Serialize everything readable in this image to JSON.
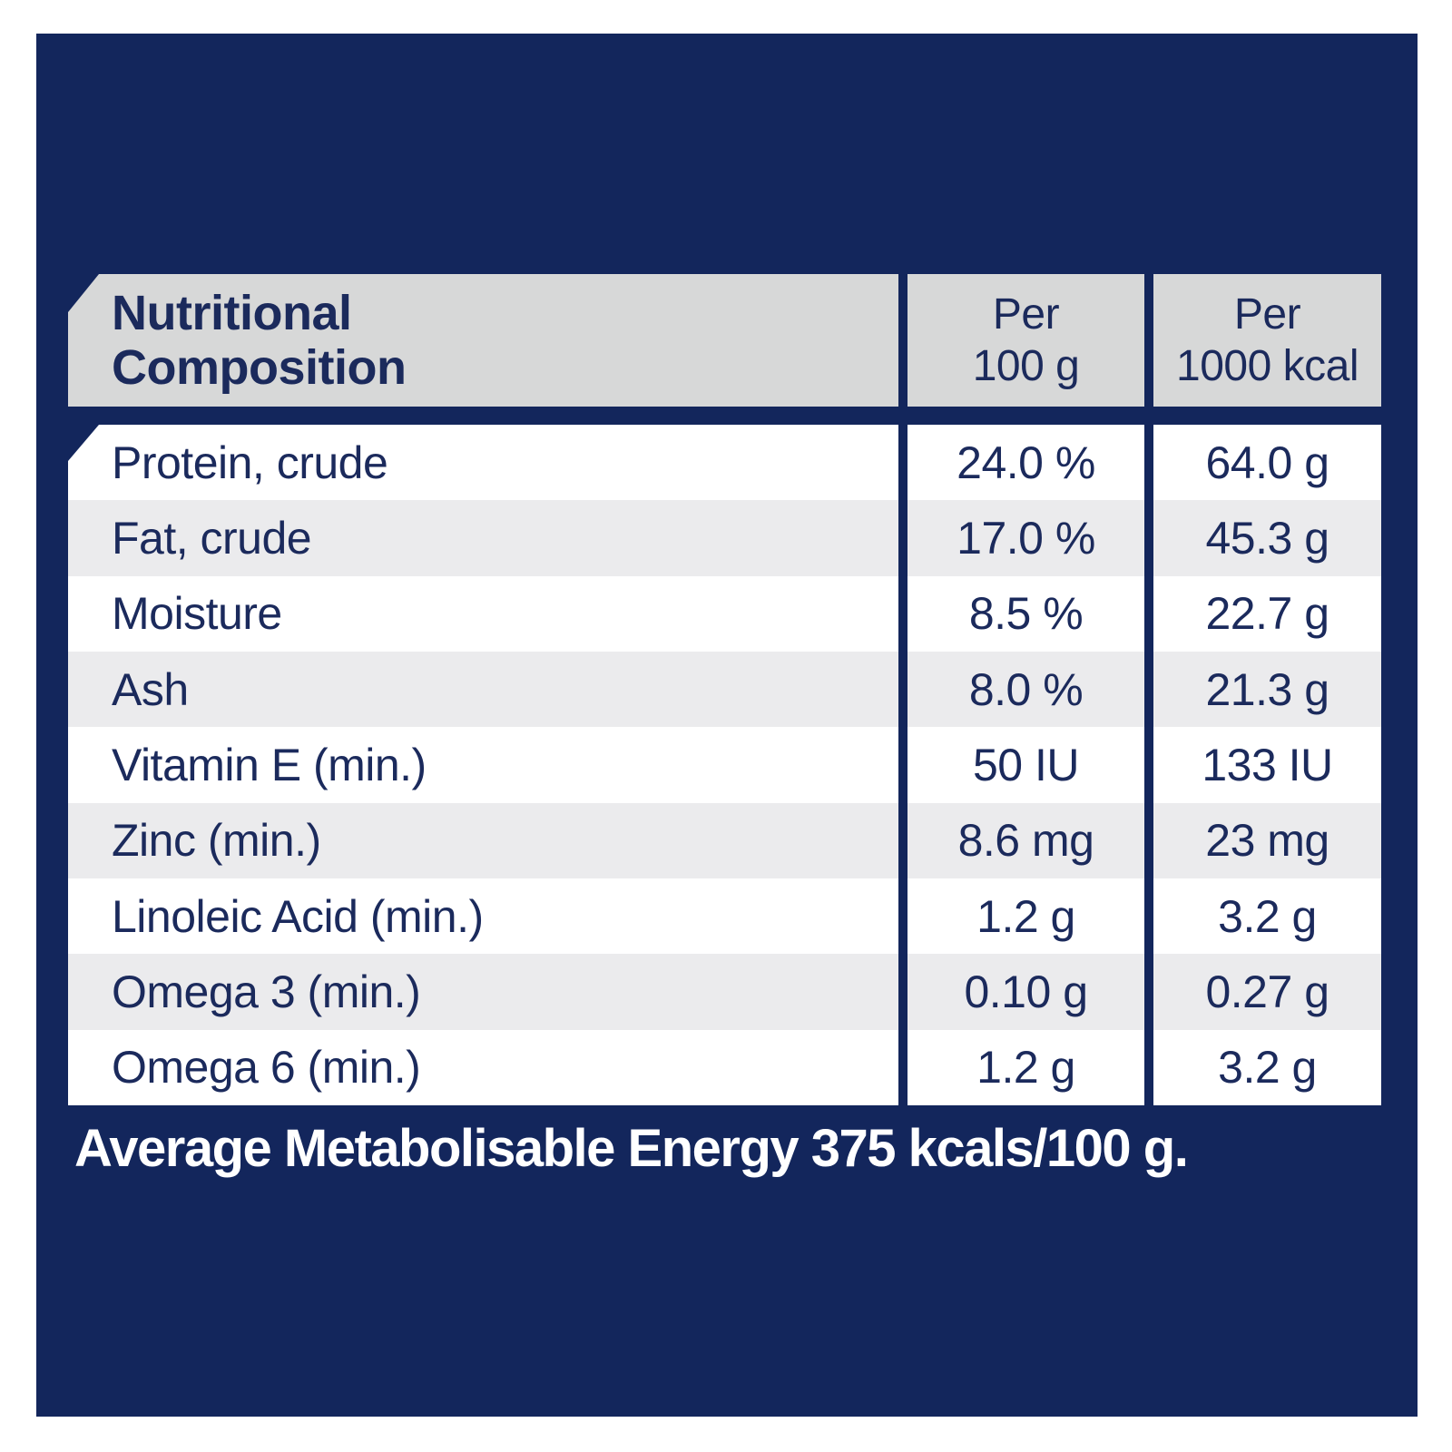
{
  "colors": {
    "page_background": "#ffffff",
    "panel_navy": "#13265c",
    "header_gray": "#d7d8d8",
    "row_alt_gray": "#ebebed",
    "row_white": "#ffffff",
    "text_navy": "#1b2a5c",
    "footer_text": "#ffffff"
  },
  "table": {
    "header": {
      "title_lines": [
        "Nutritional",
        "Composition"
      ],
      "col2_lines": [
        "Per",
        "100 g"
      ],
      "col3_lines": [
        "Per",
        "1000 kcal"
      ]
    },
    "rows": [
      {
        "label": "Protein, crude",
        "per_100g": "24.0 %",
        "per_1000kcal": "64.0 g"
      },
      {
        "label": "Fat, crude",
        "per_100g": "17.0 %",
        "per_1000kcal": "45.3 g"
      },
      {
        "label": "Moisture",
        "per_100g": "8.5 %",
        "per_1000kcal": "22.7 g"
      },
      {
        "label": "Ash",
        "per_100g": "8.0 %",
        "per_1000kcal": "21.3 g"
      },
      {
        "label": "Vitamin E (min.)",
        "per_100g": "50 IU",
        "per_1000kcal": "133 IU"
      },
      {
        "label": "Zinc (min.)",
        "per_100g": "8.6 mg",
        "per_1000kcal": "23 mg"
      },
      {
        "label": "Linoleic Acid (min.)",
        "per_100g": "1.2 g",
        "per_1000kcal": "3.2 g"
      },
      {
        "label": "Omega 3 (min.)",
        "per_100g": "0.10 g",
        "per_1000kcal": "0.27 g"
      },
      {
        "label": "Omega 6 (min.)",
        "per_100g": "1.2 g",
        "per_1000kcal": "3.2 g"
      }
    ]
  },
  "footer": {
    "text": "Average Metabolisable Energy 375 kcals/100 g."
  }
}
